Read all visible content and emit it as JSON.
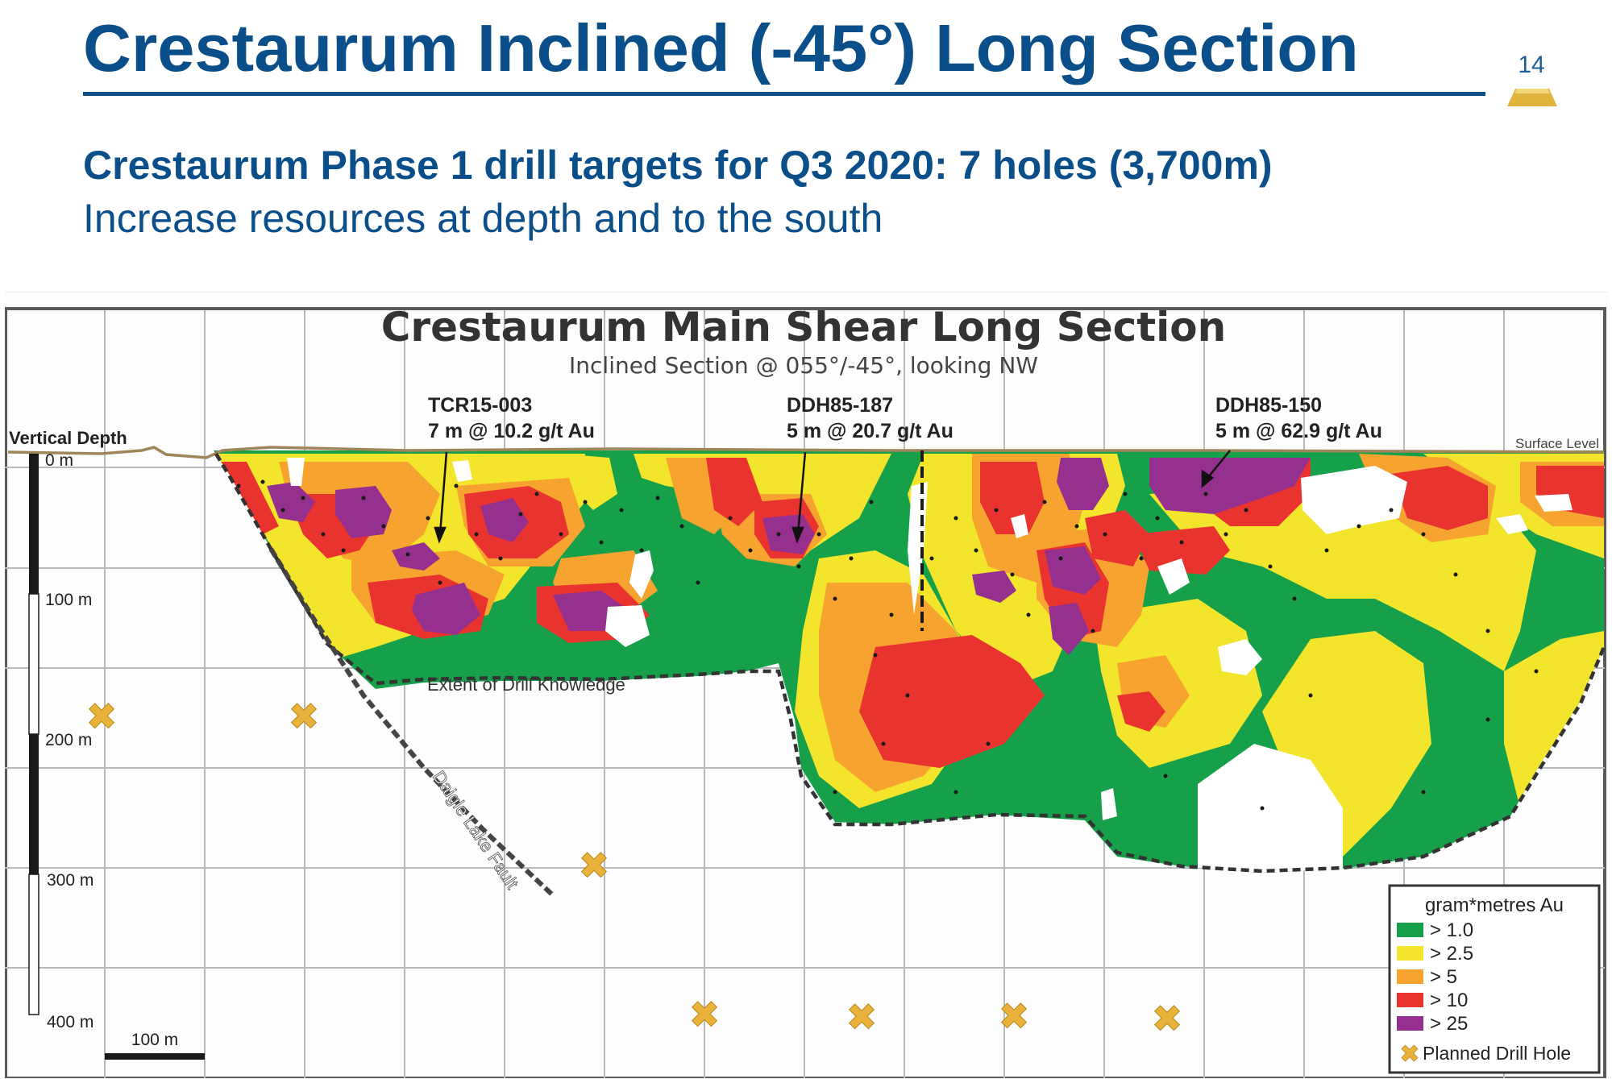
{
  "slide": {
    "title": "Crestaurum Inclined (-45°) Long Section",
    "page_number": "14",
    "subtitle": "Crestaurum Phase 1 drill targets for Q3 2020: 7 holes (3,700m)",
    "tagline": "Increase resources at depth and to the south",
    "accent_color": "#0b4f8a",
    "gold_color": "#e1b53c"
  },
  "figure": {
    "title": "Crestaurum Main Shear Long Section",
    "subtitle": "Inclined Section @ 055°/-45°, looking NW",
    "depth_label": "Vertical Depth",
    "surface_label": "Surface Level",
    "depth_ticks": [
      "0 m",
      "100 m",
      "200 m",
      "300 m",
      "400 m"
    ],
    "scale_label": "100 m",
    "drill_knowledge_label": "Extent of Drill Knowledge",
    "fault_label": "Daigle Lake Fault",
    "intercepts": [
      {
        "hole": "TCR15-003",
        "grade": "7 m @ 10.2 g/t Au"
      },
      {
        "hole": "DDH85-187",
        "grade": "5 m @ 20.7 g/t Au"
      },
      {
        "hole": "DDH85-150",
        "grade": "5 m @ 62.9 g/t Au"
      }
    ],
    "legend": {
      "title": "gram*metres Au",
      "items": [
        {
          "label": "> 1.0",
          "color": "#16a04a"
        },
        {
          "label": "> 2.5",
          "color": "#f2e52c"
        },
        {
          "label": "> 5",
          "color": "#f6a32f"
        },
        {
          "label": "> 10",
          "color": "#e9332f"
        },
        {
          "label": "> 25",
          "color": "#96308f"
        }
      ],
      "planned_label": "Planned Drill Hole",
      "planned_color": "#e9b33b"
    },
    "planned_holes_count": 7
  }
}
